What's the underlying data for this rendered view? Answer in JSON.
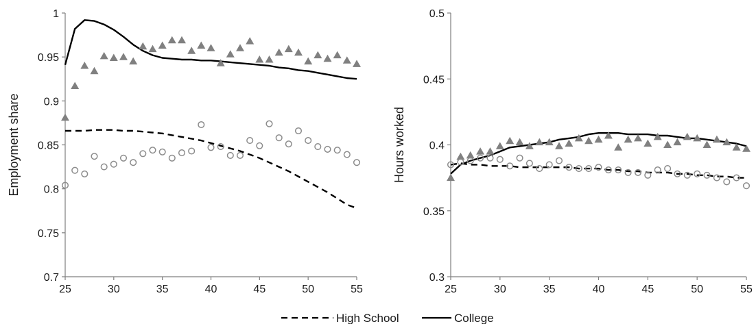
{
  "legend": {
    "high_school_label": "High School",
    "college_label": "College"
  },
  "colors": {
    "line": "#000000",
    "triangle_marker": "#808080",
    "circle_marker": "#8c8c8c"
  },
  "chart_data": [
    {
      "type": "line",
      "title": "",
      "xlabel": "",
      "ylabel": "Employment share",
      "xlim": [
        25,
        55
      ],
      "ylim": [
        0.7,
        1
      ],
      "xticks": [
        25,
        30,
        35,
        40,
        45,
        50,
        55
      ],
      "yticks": [
        0.7,
        0.75,
        0.8,
        0.85,
        0.9,
        0.95,
        1
      ],
      "ytick_labels": [
        "0.7",
        "0.75",
        "0.8",
        "0.85",
        "0.9",
        "0.95",
        "1"
      ],
      "grid": false,
      "legend_position": "bottom-center",
      "x": [
        25,
        26,
        27,
        28,
        29,
        30,
        31,
        32,
        33,
        34,
        35,
        36,
        37,
        38,
        39,
        40,
        41,
        42,
        43,
        44,
        45,
        46,
        47,
        48,
        49,
        50,
        51,
        52,
        53,
        54,
        55
      ],
      "series": [
        {
          "name": "College",
          "style": "solid-line",
          "values": [
            0.941,
            0.982,
            0.992,
            0.991,
            0.987,
            0.981,
            0.973,
            0.964,
            0.957,
            0.952,
            0.949,
            0.948,
            0.947,
            0.947,
            0.946,
            0.946,
            0.945,
            0.944,
            0.943,
            0.942,
            0.941,
            0.94,
            0.938,
            0.937,
            0.935,
            0.934,
            0.932,
            0.93,
            0.928,
            0.926,
            0.925
          ]
        },
        {
          "name": "High School",
          "style": "dashed-line",
          "values": [
            0.866,
            0.866,
            0.866,
            0.867,
            0.867,
            0.867,
            0.866,
            0.866,
            0.865,
            0.864,
            0.863,
            0.861,
            0.859,
            0.857,
            0.855,
            0.852,
            0.849,
            0.846,
            0.843,
            0.839,
            0.835,
            0.83,
            0.825,
            0.82,
            0.814,
            0.808,
            0.802,
            0.796,
            0.789,
            0.782,
            0.778
          ]
        },
        {
          "name": "",
          "style": "triangle-markers",
          "values": [
            0.881,
            0.917,
            0.94,
            0.934,
            0.951,
            0.949,
            0.95,
            0.945,
            0.962,
            0.959,
            0.963,
            0.969,
            0.969,
            0.957,
            0.963,
            0.96,
            0.943,
            0.953,
            0.96,
            0.968,
            0.947,
            0.947,
            0.955,
            0.959,
            0.955,
            0.945,
            0.952,
            0.948,
            0.952,
            0.946,
            0.942
          ]
        },
        {
          "name": "",
          "style": "circle-markers",
          "values": [
            0.804,
            0.821,
            0.817,
            0.837,
            0.825,
            0.828,
            0.835,
            0.83,
            0.84,
            0.844,
            0.842,
            0.835,
            0.841,
            0.843,
            0.873,
            0.847,
            0.848,
            0.838,
            0.838,
            0.855,
            0.849,
            0.874,
            0.858,
            0.851,
            0.866,
            0.855,
            0.848,
            0.845,
            0.844,
            0.839,
            0.83
          ]
        }
      ]
    },
    {
      "type": "line",
      "title": "",
      "xlabel": "",
      "ylabel": "Hours worked",
      "xlim": [
        25,
        55
      ],
      "ylim": [
        0.3,
        0.5
      ],
      "xticks": [
        25,
        30,
        35,
        40,
        45,
        50,
        55
      ],
      "yticks": [
        0.3,
        0.35,
        0.4,
        0.45,
        0.5
      ],
      "ytick_labels": [
        "0.3",
        "0.35",
        "0.4",
        "0.45",
        "0.5"
      ],
      "grid": false,
      "legend_position": "bottom-center",
      "x": [
        25,
        26,
        27,
        28,
        29,
        30,
        31,
        32,
        33,
        34,
        35,
        36,
        37,
        38,
        39,
        40,
        41,
        42,
        43,
        44,
        45,
        46,
        47,
        48,
        49,
        50,
        51,
        52,
        53,
        54,
        55
      ],
      "series": [
        {
          "name": "College",
          "style": "solid-line",
          "values": [
            0.378,
            0.385,
            0.388,
            0.39,
            0.392,
            0.395,
            0.398,
            0.399,
            0.4,
            0.401,
            0.402,
            0.404,
            0.405,
            0.406,
            0.408,
            0.409,
            0.409,
            0.409,
            0.408,
            0.408,
            0.408,
            0.407,
            0.407,
            0.406,
            0.405,
            0.405,
            0.404,
            0.403,
            0.402,
            0.401,
            0.399
          ]
        },
        {
          "name": "High School",
          "style": "dashed-line",
          "values": [
            0.385,
            0.386,
            0.385,
            0.385,
            0.384,
            0.384,
            0.384,
            0.383,
            0.383,
            0.383,
            0.383,
            0.383,
            0.383,
            0.382,
            0.382,
            0.382,
            0.381,
            0.381,
            0.38,
            0.38,
            0.379,
            0.379,
            0.379,
            0.378,
            0.378,
            0.377,
            0.377,
            0.376,
            0.376,
            0.375,
            0.375
          ]
        },
        {
          "name": "",
          "style": "triangle-markers",
          "values": [
            0.375,
            0.391,
            0.392,
            0.395,
            0.395,
            0.399,
            0.403,
            0.402,
            0.399,
            0.402,
            0.402,
            0.399,
            0.401,
            0.405,
            0.403,
            0.404,
            0.407,
            0.398,
            0.404,
            0.405,
            0.401,
            0.406,
            0.4,
            0.402,
            0.406,
            0.405,
            0.4,
            0.404,
            0.402,
            0.398,
            0.397
          ]
        },
        {
          "name": "",
          "style": "circle-markers",
          "values": [
            0.385,
            0.387,
            0.388,
            0.39,
            0.39,
            0.389,
            0.384,
            0.39,
            0.386,
            0.382,
            0.385,
            0.388,
            0.383,
            0.382,
            0.382,
            0.383,
            0.381,
            0.381,
            0.379,
            0.379,
            0.377,
            0.381,
            0.382,
            0.378,
            0.377,
            0.378,
            0.377,
            0.375,
            0.372,
            0.375,
            0.369
          ]
        }
      ]
    }
  ]
}
